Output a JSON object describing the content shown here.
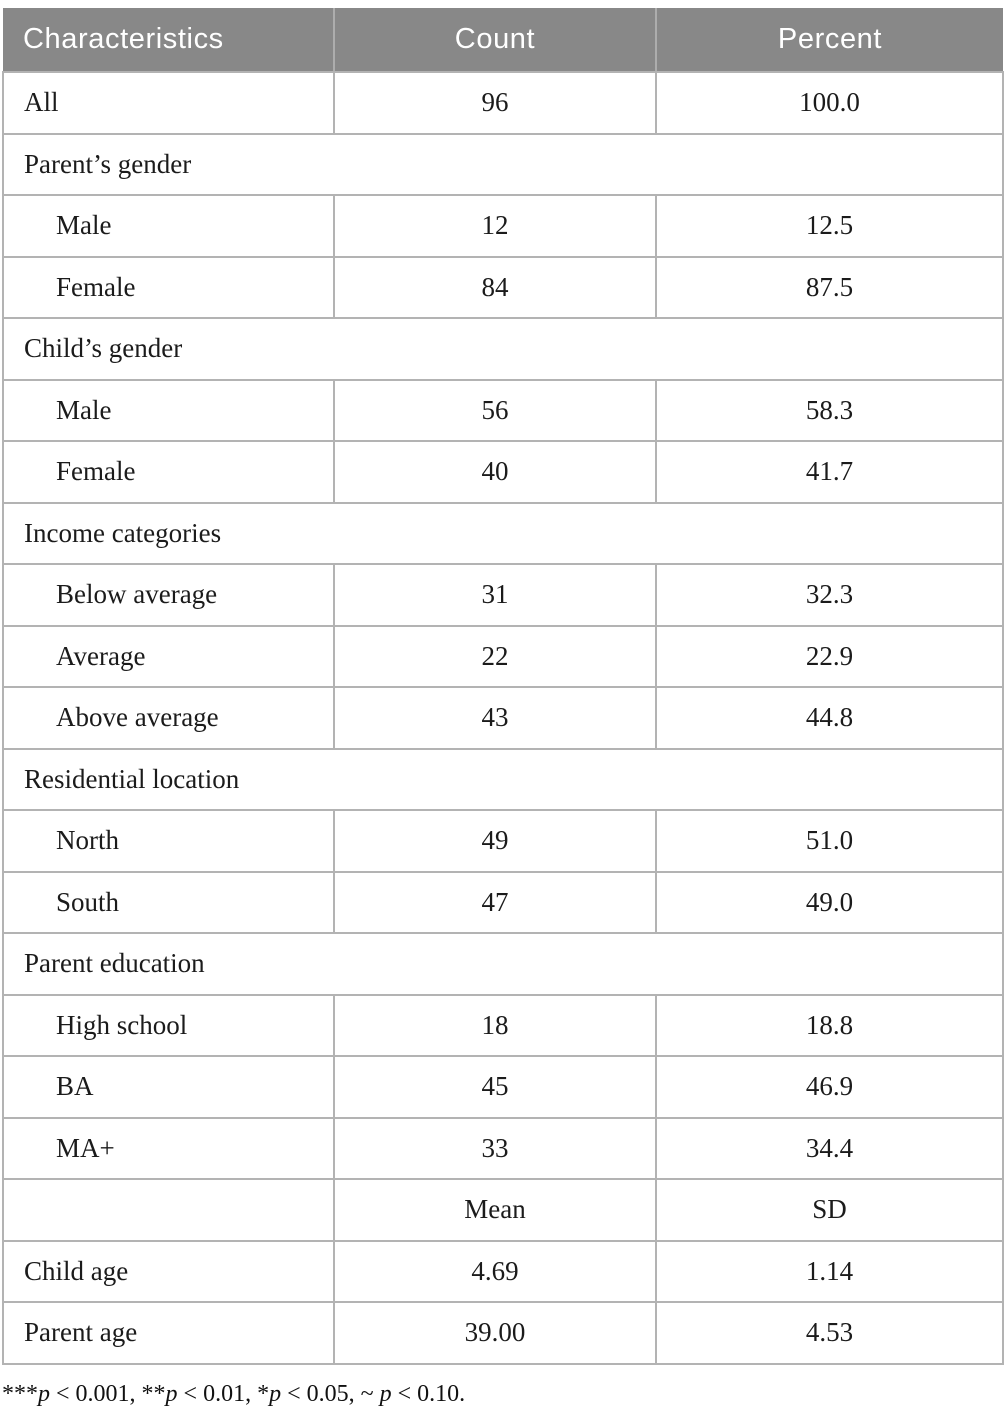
{
  "colors": {
    "header_bg": "#888888",
    "header_text": "#ffffff",
    "border": "#b3b3b3",
    "body_text": "#1b1b1b"
  },
  "table": {
    "columns": [
      {
        "label": "Characteristics"
      },
      {
        "label": "Count"
      },
      {
        "label": "Percent"
      }
    ],
    "rows": [
      {
        "type": "data",
        "label": "All",
        "col2": "96",
        "col3": "100.0"
      },
      {
        "type": "section",
        "label": "Parent’s gender"
      },
      {
        "type": "sub",
        "label": "Male",
        "col2": "12",
        "col3": "12.5"
      },
      {
        "type": "sub",
        "label": "Female",
        "col2": "84",
        "col3": "87.5"
      },
      {
        "type": "section",
        "label": "Child’s gender"
      },
      {
        "type": "sub",
        "label": "Male",
        "col2": "56",
        "col3": "58.3"
      },
      {
        "type": "sub",
        "label": "Female",
        "col2": "40",
        "col3": "41.7"
      },
      {
        "type": "section",
        "label": "Income categories"
      },
      {
        "type": "sub",
        "label": "Below average",
        "col2": "31",
        "col3": "32.3"
      },
      {
        "type": "sub",
        "label": "Average",
        "col2": "22",
        "col3": "22.9"
      },
      {
        "type": "sub",
        "label": "Above average",
        "col2": "43",
        "col3": "44.8"
      },
      {
        "type": "section",
        "label": "Residential location"
      },
      {
        "type": "sub",
        "label": "North",
        "col2": "49",
        "col3": "51.0"
      },
      {
        "type": "sub",
        "label": "South",
        "col2": "47",
        "col3": "49.0"
      },
      {
        "type": "section",
        "label": "Parent education"
      },
      {
        "type": "sub",
        "label": "High school",
        "col2": "18",
        "col3": "18.8"
      },
      {
        "type": "sub",
        "label": "BA",
        "col2": "45",
        "col3": "46.9"
      },
      {
        "type": "sub",
        "label": "MA+",
        "col2": "33",
        "col3": "34.4"
      },
      {
        "type": "subheader",
        "label": "",
        "col2": "Mean",
        "col3": "SD"
      },
      {
        "type": "data",
        "label": "Child age",
        "col2": "4.69",
        "col3": "1.14"
      },
      {
        "type": "data",
        "label": "Parent age",
        "col2": "39.00",
        "col3": "4.53"
      }
    ]
  },
  "footnote": {
    "segments": [
      {
        "t": "***"
      },
      {
        "t": "p",
        "i": true
      },
      {
        "t": " < 0.001, "
      },
      {
        "t": "**"
      },
      {
        "t": "p",
        "i": true
      },
      {
        "t": " < 0.01, "
      },
      {
        "t": "*"
      },
      {
        "t": "p",
        "i": true
      },
      {
        "t": " < 0.05, ~ "
      },
      {
        "t": "p",
        "i": true
      },
      {
        "t": " < 0.10."
      }
    ]
  }
}
